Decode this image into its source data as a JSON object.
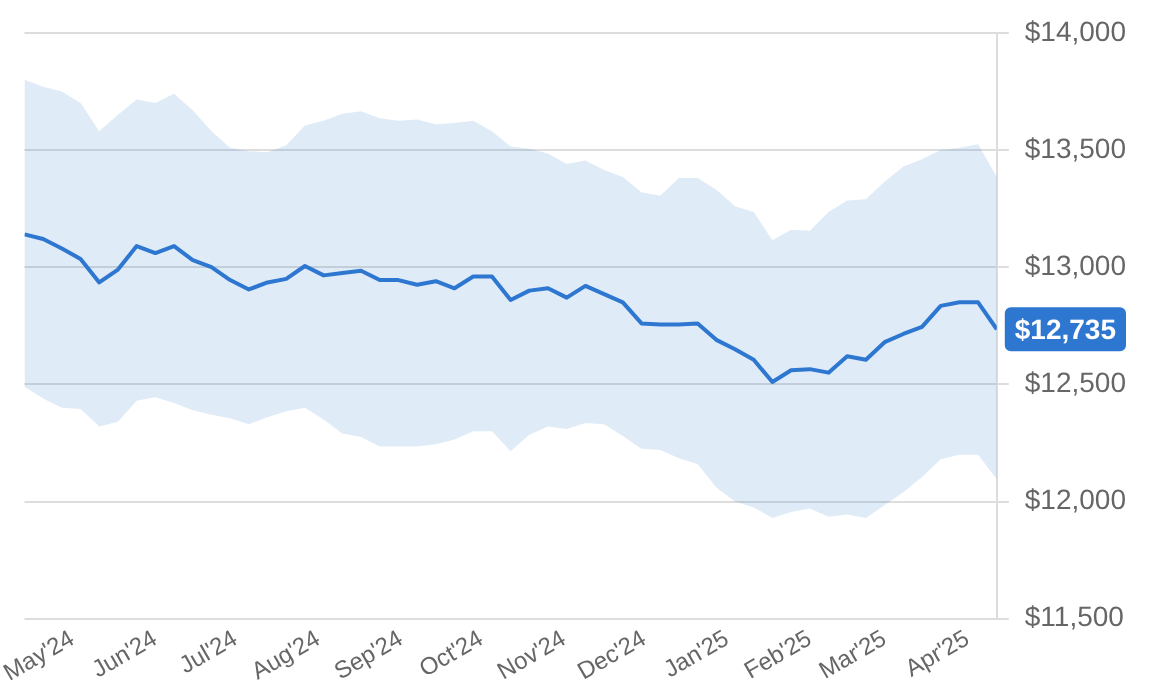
{
  "chart_data": {
    "type": "line",
    "x": [
      "2024-04-13",
      "2024-04-20",
      "2024-04-27",
      "2024-05-04",
      "2024-05-11",
      "2024-05-18",
      "2024-05-25",
      "2024-06-01",
      "2024-06-08",
      "2024-06-15",
      "2024-06-22",
      "2024-06-29",
      "2024-07-06",
      "2024-07-13",
      "2024-07-20",
      "2024-07-27",
      "2024-08-03",
      "2024-08-10",
      "2024-08-17",
      "2024-08-24",
      "2024-08-31",
      "2024-09-07",
      "2024-09-14",
      "2024-09-21",
      "2024-09-28",
      "2024-10-05",
      "2024-10-12",
      "2024-10-19",
      "2024-10-26",
      "2024-11-02",
      "2024-11-09",
      "2024-11-16",
      "2024-11-23",
      "2024-11-30",
      "2024-12-07",
      "2024-12-14",
      "2024-12-21",
      "2024-12-28",
      "2025-01-04",
      "2025-01-11",
      "2025-01-18",
      "2025-01-25",
      "2025-02-01",
      "2025-02-08",
      "2025-02-15",
      "2025-02-22",
      "2025-03-01",
      "2025-03-08",
      "2025-03-15",
      "2025-03-22",
      "2025-03-29",
      "2025-04-05",
      "2025-04-12"
    ],
    "series": [
      {
        "color": "#2e77d0",
        "values": [
          13140,
          13120,
          13080,
          13035,
          12935,
          12990,
          13090,
          13060,
          13090,
          13030,
          13000,
          12945,
          12905,
          12935,
          12950,
          13005,
          12965,
          12975,
          12985,
          12945,
          12945,
          12925,
          12940,
          12910,
          12960,
          12960,
          12860,
          12900,
          12910,
          12870,
          12920,
          12885,
          12850,
          12760,
          12755,
          12755,
          12760,
          12690,
          12650,
          12605,
          12510,
          12560,
          12565,
          12550,
          12620,
          12605,
          12680,
          12715,
          12745,
          12835,
          12850,
          12850,
          12735
        ],
        "upper": [
          13800,
          13770,
          13750,
          13700,
          13580,
          13650,
          13715,
          13700,
          13740,
          13670,
          13580,
          13510,
          13495,
          13490,
          13520,
          13605,
          13625,
          13655,
          13665,
          13635,
          13625,
          13630,
          13610,
          13615,
          13625,
          13580,
          13515,
          13505,
          13485,
          13440,
          13455,
          13415,
          13385,
          13320,
          13305,
          13380,
          13380,
          13330,
          13260,
          13235,
          13115,
          13160,
          13155,
          13235,
          13285,
          13290,
          13365,
          13430,
          13460,
          13500,
          13510,
          13525,
          13385
        ],
        "lower": [
          12490,
          12440,
          12400,
          12395,
          12320,
          12340,
          12430,
          12445,
          12420,
          12390,
          12370,
          12355,
          12330,
          12360,
          12385,
          12400,
          12350,
          12290,
          12275,
          12235,
          12235,
          12235,
          12245,
          12265,
          12300,
          12300,
          12215,
          12285,
          12320,
          12310,
          12335,
          12330,
          12280,
          12225,
          12220,
          12185,
          12160,
          12060,
          12000,
          11975,
          11930,
          11955,
          11970,
          11935,
          11945,
          11930,
          11985,
          12040,
          12105,
          12180,
          12200,
          12200,
          12095
        ]
      }
    ],
    "xlim": [
      "2024-04-13",
      "2025-04-12"
    ],
    "xticks": [
      {
        "value": "2024-05-01",
        "label": "May'24"
      },
      {
        "value": "2024-06-01",
        "label": "Jun'24"
      },
      {
        "value": "2024-07-01",
        "label": "Jul'24"
      },
      {
        "value": "2024-08-01",
        "label": "Aug'24"
      },
      {
        "value": "2024-09-01",
        "label": "Sep'24"
      },
      {
        "value": "2024-10-01",
        "label": "Oct'24"
      },
      {
        "value": "2024-11-01",
        "label": "Nov'24"
      },
      {
        "value": "2024-12-01",
        "label": "Dec'24"
      },
      {
        "value": "2025-01-01",
        "label": "Jan'25"
      },
      {
        "value": "2025-02-01",
        "label": "Feb'25"
      },
      {
        "value": "2025-03-01",
        "label": "Mar'25"
      },
      {
        "value": "2025-04-01",
        "label": "Apr'25"
      }
    ],
    "ylim": [
      11500,
      14000
    ],
    "yticks": [
      {
        "value": 11500,
        "label": "$11,500"
      },
      {
        "value": 12000,
        "label": "$12,000"
      },
      {
        "value": 12500,
        "label": "$12,500"
      },
      {
        "value": 13000,
        "label": "$13,000"
      },
      {
        "value": 13500,
        "label": "$13,500"
      },
      {
        "value": 14000,
        "label": "$14,000"
      }
    ],
    "grid": "y",
    "legend": false,
    "marker": "none",
    "line_style": "solid",
    "annotations": [
      {
        "text": "$12,735",
        "x": "2025-04-12",
        "y": 12735
      }
    ]
  }
}
